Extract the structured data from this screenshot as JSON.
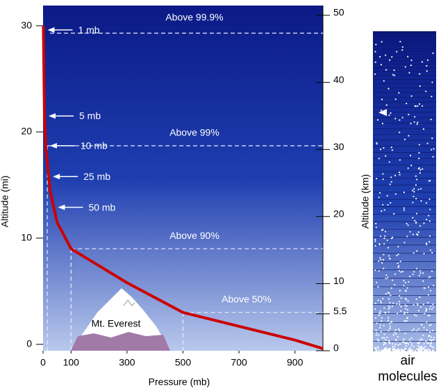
{
  "chart_data": {
    "type": "line",
    "x_label": "Pressure (mb)",
    "y_label": "Altitude (mi)",
    "y2_label": "Altitude (km)",
    "x": [
      1000,
      900,
      700,
      500,
      300,
      200,
      100,
      50,
      25,
      10,
      5,
      1
    ],
    "values": [
      -0.4,
      0.4,
      1.7,
      3.0,
      5.8,
      7.4,
      9.0,
      11.5,
      14.5,
      18.5,
      21.5,
      30
    ],
    "color": "#cc0000",
    "xlim": [
      0,
      1000
    ],
    "xticks": [
      0,
      100,
      300,
      500,
      700,
      900
    ],
    "ylim": [
      -0.6,
      31.9
    ],
    "yticks": [
      0,
      10,
      20,
      30
    ],
    "y2lim": [
      0,
      51.45
    ],
    "y2ticks": [
      0,
      5.5,
      10,
      20,
      30,
      40,
      50
    ],
    "levels": [
      {
        "text": "Above 99.9%",
        "altitude": 29.3
      },
      {
        "text": "Above 99%",
        "altitude": 18.7,
        "pressure": 15
      },
      {
        "text": "Above 90%",
        "altitude": 9.0,
        "pressure": 100
      },
      {
        "text": "Above 50%",
        "altitude": 3.0,
        "pressure": 500
      }
    ],
    "pointers": [
      {
        "text": "1 mb",
        "altitude": 29.6
      },
      {
        "text": "5 mb",
        "altitude": 21.5
      },
      {
        "text": "10 mb",
        "altitude": 18.7
      },
      {
        "text": "25 mb",
        "altitude": 15.8
      },
      {
        "text": "50 mb",
        "altitude": 12.9
      }
    ],
    "mountain_label": "Mt. Everest",
    "column_label": [
      "air",
      "molecules"
    ]
  }
}
